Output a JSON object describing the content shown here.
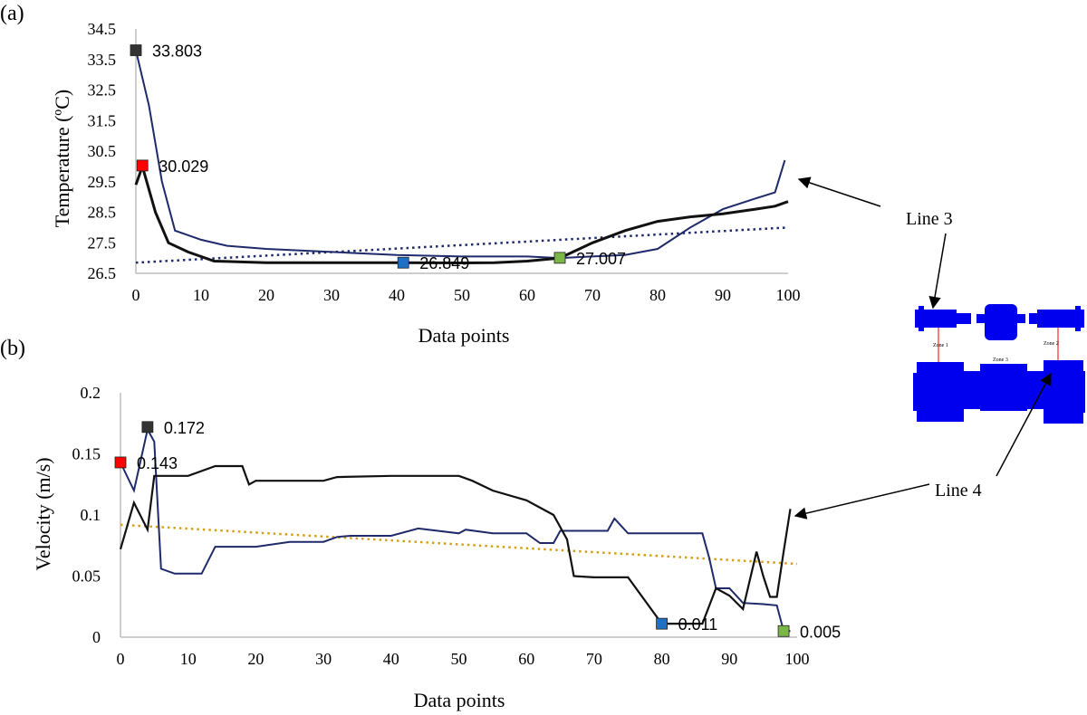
{
  "chart_data": [
    {
      "panel": "(a)",
      "type": "line",
      "xlabel": "Data points",
      "ylabel": "Temperature (ºC)",
      "xlim": [
        0,
        100
      ],
      "ylim": [
        26.5,
        34.5
      ],
      "xticks": [
        "0",
        "10",
        "20",
        "30",
        "40",
        "50",
        "60",
        "70",
        "80",
        "90",
        "100"
      ],
      "yticks": [
        "26.5",
        "27.5",
        "28.5",
        "29.5",
        "30.5",
        "31.5",
        "32.5",
        "33.5",
        "34.5"
      ],
      "series": [
        {
          "name": "Line 3",
          "color": "#1f2a6b",
          "x": [
            0,
            2,
            4,
            6,
            10,
            14,
            20,
            30,
            40,
            50,
            60,
            65,
            70,
            75,
            80,
            85,
            90,
            95,
            98,
            99.5
          ],
          "y": [
            33.8,
            32.0,
            29.5,
            27.9,
            27.6,
            27.4,
            27.3,
            27.2,
            27.1,
            27.05,
            27.05,
            27.0,
            27.05,
            27.1,
            27.3,
            28.0,
            28.6,
            28.95,
            29.15,
            30.2
          ]
        },
        {
          "name": "Line 4",
          "color": "#111111",
          "x": [
            0,
            1,
            3,
            5,
            8,
            12,
            20,
            30,
            40,
            50,
            55,
            60,
            65,
            70,
            75,
            80,
            85,
            90,
            95,
            98,
            100
          ],
          "y": [
            29.4,
            30.0,
            28.5,
            27.5,
            27.2,
            26.9,
            26.85,
            26.85,
            26.85,
            26.84,
            26.85,
            26.9,
            27.0,
            27.5,
            27.9,
            28.2,
            28.35,
            28.45,
            28.6,
            28.7,
            28.85
          ]
        }
      ],
      "trendline": {
        "color": "#1f2a6b",
        "x": [
          0,
          100
        ],
        "y": [
          26.85,
          28.0
        ]
      },
      "markers": [
        {
          "x": 0,
          "y": 33.803,
          "label": "33.803",
          "color": "#333333"
        },
        {
          "x": 1,
          "y": 30.029,
          "label": "30.029",
          "color": "#ff0000"
        },
        {
          "x": 41,
          "y": 26.849,
          "label": "26.849",
          "color": "#1f6fc5"
        },
        {
          "x": 65,
          "y": 27.007,
          "label": "27.007",
          "color": "#7ab648"
        }
      ]
    },
    {
      "panel": "(b)",
      "type": "line",
      "xlabel": "Data points",
      "ylabel": "Velocity (m/s)",
      "xlim": [
        0,
        100
      ],
      "ylim": [
        0,
        0.2
      ],
      "xticks": [
        "0",
        "10",
        "20",
        "30",
        "40",
        "50",
        "60",
        "70",
        "80",
        "90",
        "100"
      ],
      "yticks": [
        "0",
        "0.05",
        "0.1",
        "0.15",
        "0.2"
      ],
      "series": [
        {
          "name": "Line 3",
          "color": "#1f2a6b",
          "x": [
            0,
            2,
            4,
            5,
            6,
            8,
            12,
            14,
            20,
            25,
            30,
            32,
            34,
            40,
            44,
            50,
            51,
            55,
            60,
            62,
            64,
            65,
            68,
            70,
            72,
            73,
            75,
            80,
            86,
            87,
            88,
            90,
            92,
            95,
            97,
            98,
            99
          ],
          "y": [
            0.143,
            0.12,
            0.17,
            0.16,
            0.056,
            0.052,
            0.052,
            0.074,
            0.074,
            0.078,
            0.078,
            0.082,
            0.083,
            0.083,
            0.089,
            0.085,
            0.088,
            0.085,
            0.085,
            0.077,
            0.077,
            0.087,
            0.087,
            0.087,
            0.087,
            0.097,
            0.085,
            0.085,
            0.085,
            0.065,
            0.04,
            0.04,
            0.028,
            0.027,
            0.026,
            0.005,
            0.005
          ]
        },
        {
          "name": "Line 4",
          "color": "#111111",
          "x": [
            0,
            2,
            4,
            5,
            6,
            10,
            14,
            18,
            19,
            20,
            30,
            32,
            40,
            50,
            52,
            55,
            60,
            64,
            66,
            67,
            70,
            75,
            80,
            82,
            85,
            86,
            88,
            90,
            92,
            94,
            95,
            96,
            97,
            98,
            99
          ],
          "y": [
            0.072,
            0.11,
            0.088,
            0.132,
            0.132,
            0.132,
            0.14,
            0.14,
            0.125,
            0.128,
            0.128,
            0.131,
            0.132,
            0.132,
            0.128,
            0.12,
            0.112,
            0.1,
            0.08,
            0.05,
            0.049,
            0.049,
            0.011,
            0.011,
            0.011,
            0.011,
            0.04,
            0.034,
            0.023,
            0.07,
            0.05,
            0.033,
            0.033,
            0.07,
            0.105
          ]
        }
      ],
      "trendline": {
        "color": "#d4a017",
        "x": [
          0,
          100
        ],
        "y": [
          0.092,
          0.06
        ]
      },
      "markers": [
        {
          "x": 4,
          "y": 0.172,
          "label": "0.172",
          "color": "#333333"
        },
        {
          "x": 0,
          "y": 0.143,
          "label": "0.143",
          "color": "#ff0000"
        },
        {
          "x": 80,
          "y": 0.011,
          "label": "0.011",
          "color": "#1f6fc5"
        },
        {
          "x": 98,
          "y": 0.005,
          "label": "0.005",
          "color": "#7ab648"
        }
      ]
    }
  ],
  "callouts": {
    "line3": "Line 3",
    "line4": "Line 4"
  },
  "floorplan": {
    "zone_labels": [
      "Zone 1",
      "Zone 2",
      "Zone 3"
    ],
    "fill_color": "#0000ee",
    "line_color": "#ff4d4d"
  }
}
